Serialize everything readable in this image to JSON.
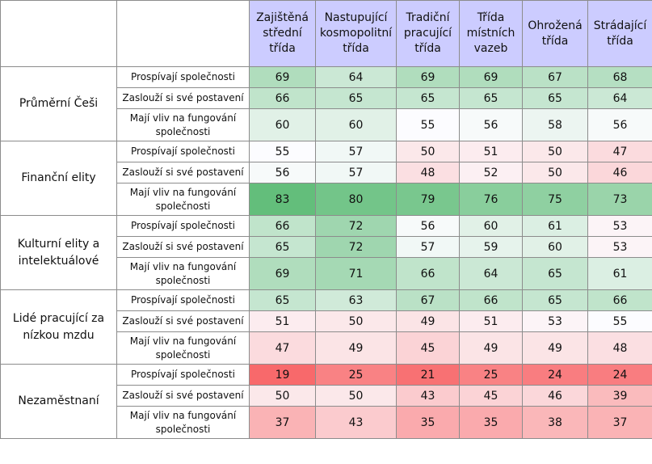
{
  "chart_data": {
    "type": "heatmap",
    "title": "",
    "columns": [
      "Zajištěná střední třída",
      "Nastupující kosmopolitní třída",
      "Tradiční pracující třída",
      "Třída místních vazeb",
      "Ohrožená třída",
      "Strádající třída"
    ],
    "metrics": [
      "Prospívají společnosti",
      "Zaslouží si své postavení",
      "Mají vliv na fungování společnosti"
    ],
    "groups": [
      {
        "name": "Průměrní Češi",
        "rows": [
          [
            69,
            64,
            69,
            69,
            67,
            68
          ],
          [
            66,
            65,
            65,
            65,
            65,
            64
          ],
          [
            60,
            60,
            55,
            56,
            58,
            56
          ]
        ]
      },
      {
        "name": "Finanční elity",
        "rows": [
          [
            55,
            57,
            50,
            51,
            50,
            47
          ],
          [
            56,
            57,
            48,
            52,
            50,
            46
          ],
          [
            83,
            80,
            79,
            76,
            75,
            73
          ]
        ]
      },
      {
        "name": "Kulturní elity a intelektuálové",
        "rows": [
          [
            66,
            72,
            56,
            60,
            61,
            53
          ],
          [
            65,
            72,
            57,
            59,
            60,
            53
          ],
          [
            69,
            71,
            66,
            64,
            65,
            61
          ]
        ]
      },
      {
        "name": "Lidé pracující za nízkou mzdu",
        "rows": [
          [
            65,
            63,
            67,
            66,
            65,
            66
          ],
          [
            51,
            50,
            49,
            51,
            53,
            55
          ],
          [
            47,
            49,
            45,
            49,
            49,
            48
          ]
        ]
      },
      {
        "name": "Nezaměstnaní",
        "rows": [
          [
            19,
            25,
            21,
            25,
            24,
            24
          ],
          [
            50,
            50,
            43,
            45,
            46,
            39
          ],
          [
            37,
            43,
            35,
            35,
            38,
            37
          ]
        ]
      }
    ],
    "color_scale": {
      "low": "#f8696b",
      "mid": "#fcfcff",
      "high": "#63be7b",
      "min": 19,
      "mid_value": 55,
      "max": 83
    }
  }
}
